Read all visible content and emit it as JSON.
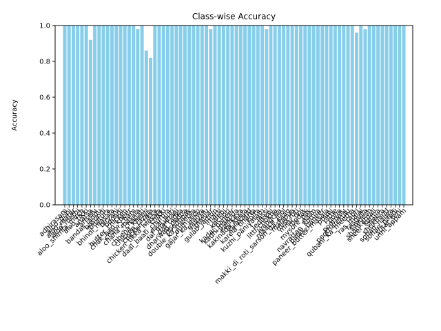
{
  "chart_data": {
    "type": "bar",
    "title": "Class-wise Accuracy",
    "xlabel": "",
    "ylabel": "Accuracy",
    "ylim": [
      0,
      1.0
    ],
    "yticks": [
      "0.0",
      "0.2",
      "0.4",
      "0.6",
      "0.8",
      "1.0"
    ],
    "grid": false,
    "bar_color": "#87ceeb",
    "categories": [
      "adhirasam",
      "aloo_gobi",
      "aloo_matar",
      "aloo_methi",
      "aloo_shimla_mirch",
      "aloo_tikki",
      "anarsa",
      "ariselu",
      "bandar_laddu",
      "basundi",
      "bhatura",
      "bhindi_masala",
      "biryani",
      "boondi",
      "butter_chicken",
      "chak_hao_kheer",
      "cham_cham",
      "chana_masala",
      "chapati",
      "chhena_kheeri",
      "chicken_razala",
      "chicken_tikka",
      "chicken_tikka_masala",
      "chikki",
      "daal_baati_churma",
      "daal_puri",
      "dal_makhani",
      "dal_tadka",
      "dharwad_pedha",
      "doodhpak",
      "double_ka_meetha",
      "dum_aloo",
      "gajar_ka_halwa",
      "gavvalu",
      "ghevar",
      "gulab_jamun",
      "imarti",
      "jalebi",
      "kachori",
      "kadai_paneer",
      "kadhi_pakoda",
      "kajjikaya",
      "kakinada_khaja",
      "kalakand",
      "karela_bharta",
      "kofta",
      "kuzhi_paniyaram",
      "lassi",
      "ledikeni",
      "litti_chokha",
      "lyangcha",
      "maach_jhol",
      "makki_di_roti_sarson_da_saag",
      "malapua",
      "misi_roti",
      "misti_doi",
      "modak",
      "mysore_pak",
      "naan",
      "navrattan_korma",
      "palak_paneer",
      "paneer_butter_masala",
      "phirni",
      "pithe",
      "poha",
      "poornalu",
      "pootharekulu",
      "qubani_ka_meetha",
      "rabri",
      "ras_malai",
      "rasgulla",
      "sandesh",
      "shankarpali",
      "sheer_korma",
      "sheera",
      "shrikhand",
      "sohan_halwa",
      "sohan_papdi",
      "sutar_feni",
      "unni_appam"
    ],
    "values": [
      1.0,
      1.0,
      1.0,
      1.0,
      1.0,
      1.0,
      0.92,
      1.0,
      1.0,
      1.0,
      1.0,
      1.0,
      1.0,
      1.0,
      1.0,
      1.0,
      1.0,
      0.98,
      1.0,
      0.86,
      0.82,
      1.0,
      1.0,
      1.0,
      1.0,
      1.0,
      1.0,
      1.0,
      1.0,
      1.0,
      1.0,
      1.0,
      1.0,
      1.0,
      0.98,
      1.0,
      1.0,
      1.0,
      1.0,
      1.0,
      1.0,
      1.0,
      1.0,
      1.0,
      1.0,
      1.0,
      1.0,
      0.98,
      1.0,
      1.0,
      1.0,
      1.0,
      1.0,
      1.0,
      1.0,
      1.0,
      1.0,
      1.0,
      1.0,
      1.0,
      1.0,
      1.0,
      1.0,
      1.0,
      1.0,
      1.0,
      1.0,
      1.0,
      0.96,
      1.0,
      0.98,
      1.0,
      1.0,
      1.0,
      1.0,
      1.0,
      1.0,
      1.0,
      1.0,
      1.0
    ]
  }
}
